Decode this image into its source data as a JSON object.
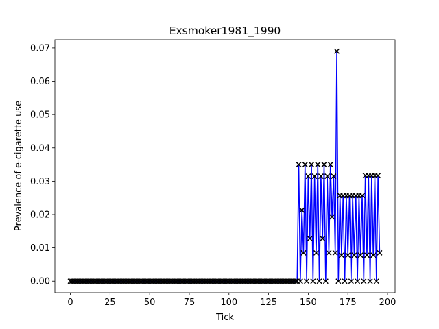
{
  "chart_data": {
    "type": "line",
    "title": "Exsmoker1981_1990",
    "xlabel": "Tick",
    "ylabel": "Prevalence of e-cigarette use",
    "x": [
      0,
      1,
      2,
      3,
      4,
      5,
      6,
      7,
      8,
      9,
      10,
      11,
      12,
      13,
      14,
      15,
      16,
      17,
      18,
      19,
      20,
      21,
      22,
      23,
      24,
      25,
      26,
      27,
      28,
      29,
      30,
      31,
      32,
      33,
      34,
      35,
      36,
      37,
      38,
      39,
      40,
      41,
      42,
      43,
      44,
      45,
      46,
      47,
      48,
      49,
      50,
      51,
      52,
      53,
      54,
      55,
      56,
      57,
      58,
      59,
      60,
      61,
      62,
      63,
      64,
      65,
      66,
      67,
      68,
      69,
      70,
      71,
      72,
      73,
      74,
      75,
      76,
      77,
      78,
      79,
      80,
      81,
      82,
      83,
      84,
      85,
      86,
      87,
      88,
      89,
      90,
      91,
      92,
      93,
      94,
      95,
      96,
      97,
      98,
      99,
      100,
      101,
      102,
      103,
      104,
      105,
      106,
      107,
      108,
      109,
      110,
      111,
      112,
      113,
      114,
      115,
      116,
      117,
      118,
      119,
      120,
      121,
      122,
      123,
      124,
      125,
      126,
      127,
      128,
      129,
      130,
      131,
      132,
      133,
      134,
      135,
      136,
      137,
      138,
      139,
      140,
      141,
      142,
      143,
      144,
      145,
      146,
      147,
      148,
      149,
      150,
      151,
      152,
      153,
      154,
      155,
      156,
      157,
      158,
      159,
      160,
      161,
      162,
      163,
      164,
      165,
      166,
      167,
      168,
      169,
      170,
      171,
      172,
      173,
      174,
      175,
      176,
      177,
      178,
      179,
      180,
      181,
      182,
      183,
      184,
      185,
      186,
      187,
      188,
      189,
      190,
      191,
      192,
      193,
      194,
      195
    ],
    "series": [
      {
        "color": "#0000ff",
        "marker_color": "#000000",
        "values": [
          0,
          0,
          0,
          0,
          0,
          0,
          0,
          0,
          0,
          0,
          0,
          0,
          0,
          0,
          0,
          0,
          0,
          0,
          0,
          0,
          0,
          0,
          0,
          0,
          0,
          0,
          0,
          0,
          0,
          0,
          0,
          0,
          0,
          0,
          0,
          0,
          0,
          0,
          0,
          0,
          0,
          0,
          0,
          0,
          0,
          0,
          0,
          0,
          0,
          0,
          0,
          0,
          0,
          0,
          0,
          0,
          0,
          0,
          0,
          0,
          0,
          0,
          0,
          0,
          0,
          0,
          0,
          0,
          0,
          0,
          0,
          0,
          0,
          0,
          0,
          0,
          0,
          0,
          0,
          0,
          0,
          0,
          0,
          0,
          0,
          0,
          0,
          0,
          0,
          0,
          0,
          0,
          0,
          0,
          0,
          0,
          0,
          0,
          0,
          0,
          0,
          0,
          0,
          0,
          0,
          0,
          0,
          0,
          0,
          0,
          0,
          0,
          0,
          0,
          0,
          0,
          0,
          0,
          0,
          0,
          0,
          0,
          0,
          0,
          0,
          0,
          0,
          0,
          0,
          0,
          0,
          0,
          0,
          0,
          0,
          0,
          0,
          0,
          0,
          0,
          0,
          0,
          0,
          0,
          0.035,
          0,
          0.0213,
          0.0085,
          0.035,
          0,
          0.0315,
          0.0128,
          0.035,
          0,
          0.0315,
          0.0085,
          0.035,
          0,
          0.0315,
          0.0128,
          0.035,
          0,
          0.0315,
          0.0085,
          0.035,
          0.0193,
          0.0315,
          0.0085,
          0.069,
          0,
          0.0257,
          0.0078,
          0.0257,
          0,
          0.0257,
          0.0078,
          0.0257,
          0,
          0.0257,
          0.0078,
          0.0257,
          0,
          0.0257,
          0.0078,
          0.0257,
          0,
          0.0317,
          0.0078,
          0.0317,
          0,
          0.0317,
          0.0078,
          0.0317,
          0,
          0.0317,
          0.0085
        ]
      }
    ],
    "xlim": [
      -9.75,
      204.75
    ],
    "xticks": [
      0,
      25,
      50,
      75,
      100,
      125,
      150,
      175,
      200
    ],
    "ylim": [
      -0.00345,
      0.07245
    ],
    "yticks": [
      {
        "value": 0,
        "label": "0.00"
      },
      {
        "value": 0.01,
        "label": "0.01"
      },
      {
        "value": 0.02,
        "label": "0.02"
      },
      {
        "value": 0.03,
        "label": "0.03"
      },
      {
        "value": 0.04,
        "label": "0.04"
      },
      {
        "value": 0.05,
        "label": "0.05"
      },
      {
        "value": 0.06,
        "label": "0.06"
      },
      {
        "value": 0.07,
        "label": "0.07"
      }
    ]
  }
}
